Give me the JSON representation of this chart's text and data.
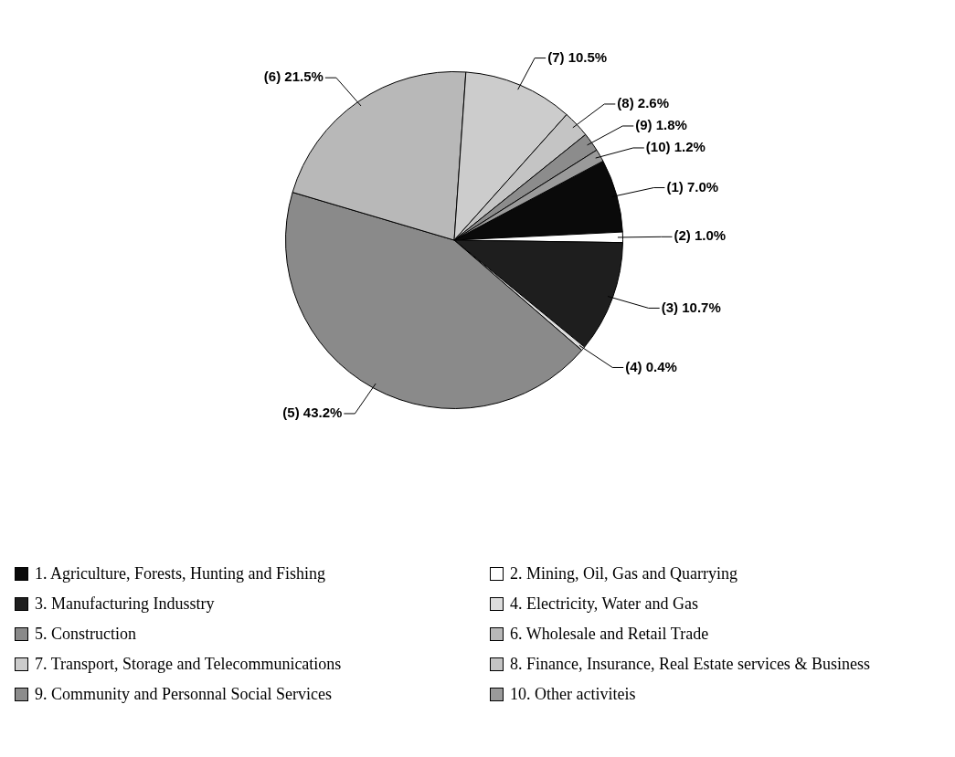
{
  "chart_data": {
    "type": "pie",
    "categories": [
      "1. Agriculture, Forests, Hunting and Fishing",
      "2. Mining, Oil, Gas and Quarrying",
      "3. Manufacturing Indusstry",
      "4. Electricity, Water and Gas",
      "5. Construction",
      "6. Wholesale and Retail Trade",
      "7. Transport, Storage and Telecommunications",
      "8. Finance, Insurance, Real Estate services & Business",
      "9. Community and Personnal Social Services",
      "10. Other activiteis"
    ],
    "values": [
      7.0,
      1.0,
      10.7,
      0.4,
      43.2,
      21.5,
      10.5,
      2.6,
      1.8,
      1.2
    ],
    "colors": [
      "#0a0a0a",
      "#ffffff",
      "#1e1e1e",
      "#dddddd",
      "#8a8a8a",
      "#b8b8b8",
      "#cccccc",
      "#c4c4c4",
      "#8c8c8c",
      "#9a9a9a"
    ],
    "value_labels": [
      "(1) 7.0%",
      "(2) 1.0%",
      "(3) 10.7%",
      "(4) 0.4%",
      "(5) 43.2%",
      "(6) 21.5%",
      "(7) 10.5%",
      "(8) 2.6%",
      "(9) 1.8%",
      "(10) 1.2%"
    ],
    "legend": "bottom"
  }
}
